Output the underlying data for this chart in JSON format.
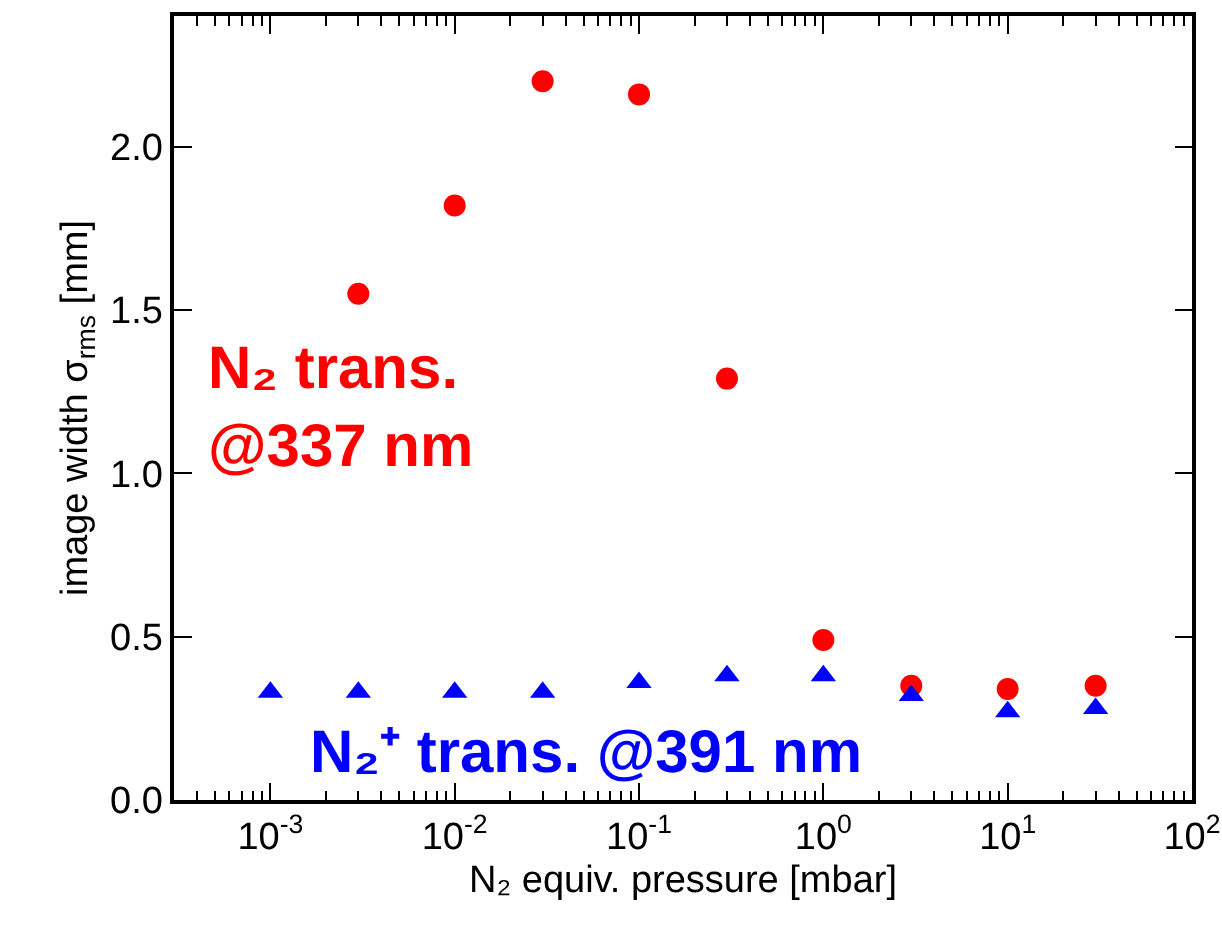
{
  "chart_data": {
    "type": "scatter",
    "xlabel": "N₂ equiv. pressure [mbar]",
    "ylabel": "image width σ$_{rms}$ [mm]",
    "log": "x",
    "xlim": [
      0.0003,
      100
    ],
    "xticks": [
      {
        "value": 0.001,
        "label": "10$^{-3}$"
      },
      {
        "value": 0.01,
        "label": "10$^{-2}$"
      },
      {
        "value": 0.1,
        "label": "10$^{-1}$"
      },
      {
        "value": 1,
        "label": "10$^{0}$"
      },
      {
        "value": 10,
        "label": "10$^{1}$"
      },
      {
        "value": 100,
        "label": "10$^{2}$"
      }
    ],
    "ylim": [
      0,
      2.4
    ],
    "yticks": [
      {
        "value": 0,
        "label": "0.0"
      },
      {
        "value": 0.5,
        "label": "0.5"
      },
      {
        "value": 1,
        "label": "1.0"
      },
      {
        "value": 1.5,
        "label": "1.5"
      },
      {
        "value": 2,
        "label": "2.0"
      }
    ],
    "grid": false,
    "legend": false,
    "series": [
      {
        "name": "N₂ trans.\n@337 nm",
        "color": "#ff0000",
        "marker": "circle",
        "x": [
          0.003,
          0.01,
          0.03,
          0.1,
          0.3,
          1,
          3,
          10,
          30
        ],
        "values": [
          1.55,
          1.82,
          2.2,
          2.16,
          1.29,
          0.49,
          0.35,
          0.34,
          0.35
        ]
      },
      {
        "name": "N₂⁺ trans. @391 nm",
        "color": "#0000ff",
        "marker": "triangle",
        "x": [
          0.001,
          0.003,
          0.01,
          0.03,
          0.1,
          0.3,
          1,
          3,
          10,
          30
        ],
        "values": [
          0.33,
          0.33,
          0.33,
          0.33,
          0.36,
          0.38,
          0.38,
          0.32,
          0.27,
          0.28
        ]
      }
    ]
  }
}
